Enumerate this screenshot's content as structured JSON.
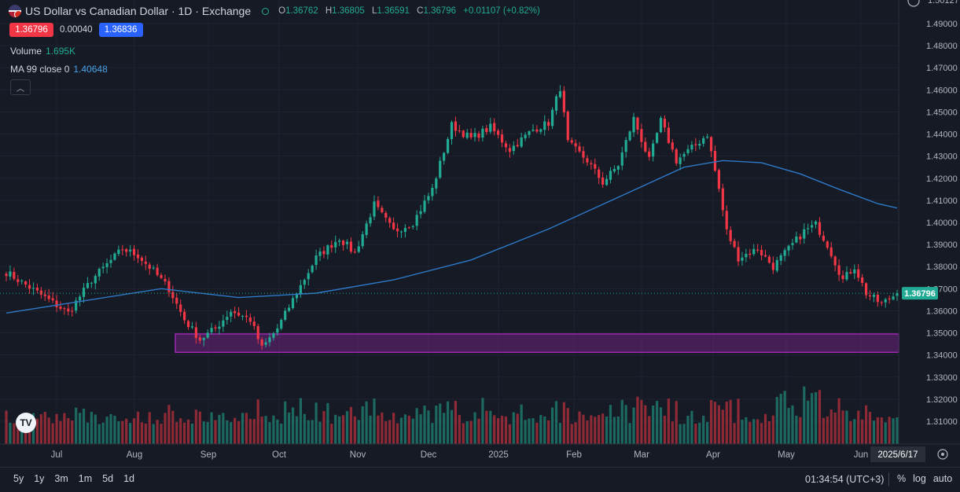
{
  "header": {
    "symbol_title": "US Dollar vs Canadian Dollar · 1D · Exchange",
    "ohlc": {
      "o_label": "O",
      "o": "1.36762",
      "h_label": "H",
      "h": "1.36805",
      "l_label": "L",
      "l": "1.36591",
      "c_label": "C",
      "c": "1.36796",
      "change": "+0.01107 (+0.82%)"
    },
    "sell_price": "1.36796",
    "spread": "0.00040",
    "buy_price": "1.36836"
  },
  "indicators": {
    "volume_label": "Volume",
    "volume_value": "1.695K",
    "ma_label": "MA 99 close 0",
    "ma_value": "1.40648"
  },
  "price_scale": {
    "ticks": [
      "1.49000",
      "1.48000",
      "1.47000",
      "1.46000",
      "1.45000",
      "1.44000",
      "1.43000",
      "1.42000",
      "1.41000",
      "1.40000",
      "1.39000",
      "1.38000",
      "1.37000",
      "1.36000",
      "1.35000",
      "1.34000",
      "1.33000",
      "1.32000",
      "1.31000"
    ],
    "last_price_label": "1.36796",
    "top_partial_label": "1.50127"
  },
  "time_scale": {
    "labels": [
      "Jul",
      "Aug",
      "Sep",
      "Oct",
      "Nov",
      "Dec",
      "2025",
      "Feb",
      "Mar",
      "Apr",
      "May",
      "Jun"
    ],
    "cursor_date": "2025/6/17"
  },
  "bottom_bar": {
    "ranges": [
      "5y",
      "1y",
      "3m",
      "1m",
      "5d",
      "1d"
    ],
    "clock": "01:34:54 (UTC+3)",
    "percent": "%",
    "log": "log",
    "auto": "auto"
  },
  "colors": {
    "up": "#22ab94",
    "down": "#f23645",
    "ma": "#2e79c7",
    "zone": "#9c27b0",
    "bg": "#161a25"
  },
  "chart_data": {
    "type": "candlestick",
    "title": "US Dollar vs Canadian Dollar · 1D · Exchange",
    "ylim": [
      1.3035,
      1.5013
    ],
    "months": [
      "Jul",
      "Aug",
      "Sep",
      "Oct",
      "Nov",
      "Dec",
      "2025",
      "Feb",
      "Mar",
      "Apr",
      "May",
      "Jun"
    ],
    "close_path": [
      [
        0,
        1.3775
      ],
      [
        10,
        1.366
      ],
      [
        16,
        1.359
      ],
      [
        22,
        1.374
      ],
      [
        30,
        1.388
      ],
      [
        34,
        1.385
      ],
      [
        38,
        1.378
      ],
      [
        42,
        1.37
      ],
      [
        46,
        1.356
      ],
      [
        50,
        1.347
      ],
      [
        54,
        1.352
      ],
      [
        58,
        1.36
      ],
      [
        63,
        1.356
      ],
      [
        66,
        1.343
      ],
      [
        70,
        1.352
      ],
      [
        74,
        1.365
      ],
      [
        80,
        1.384
      ],
      [
        86,
        1.393
      ],
      [
        90,
        1.386
      ],
      [
        95,
        1.408
      ],
      [
        100,
        1.396
      ],
      [
        105,
        1.4
      ],
      [
        110,
        1.415
      ],
      [
        115,
        1.444
      ],
      [
        120,
        1.438
      ],
      [
        125,
        1.443
      ],
      [
        130,
        1.433
      ],
      [
        136,
        1.442
      ],
      [
        140,
        1.445
      ],
      [
        143,
        1.461
      ],
      [
        145,
        1.436
      ],
      [
        150,
        1.428
      ],
      [
        154,
        1.418
      ],
      [
        158,
        1.426
      ],
      [
        162,
        1.447
      ],
      [
        166,
        1.428
      ],
      [
        169,
        1.446
      ],
      [
        173,
        1.428
      ],
      [
        178,
        1.435
      ],
      [
        181,
        1.44
      ],
      [
        184,
        1.415
      ],
      [
        186,
        1.396
      ],
      [
        189,
        1.384
      ],
      [
        194,
        1.388
      ],
      [
        198,
        1.38
      ],
      [
        202,
        1.388
      ],
      [
        206,
        1.396
      ],
      [
        209,
        1.399
      ],
      [
        212,
        1.39
      ],
      [
        216,
        1.374
      ],
      [
        219,
        1.38
      ],
      [
        222,
        1.368
      ],
      [
        226,
        1.363
      ],
      [
        230,
        1.368
      ]
    ],
    "volume_scale_max": 1.9,
    "ma99": {
      "name": "MA 99 close 0",
      "points": [
        [
          0,
          1.359
        ],
        [
          40,
          1.37
        ],
        [
          60,
          1.366
        ],
        [
          80,
          1.368
        ],
        [
          100,
          1.374
        ],
        [
          120,
          1.383
        ],
        [
          140,
          1.397
        ],
        [
          160,
          1.413
        ],
        [
          175,
          1.425
        ],
        [
          185,
          1.428
        ],
        [
          195,
          1.427
        ],
        [
          205,
          1.422
        ],
        [
          215,
          1.415
        ],
        [
          225,
          1.4085
        ],
        [
          230,
          1.4065
        ]
      ],
      "last_value": 1.40648
    },
    "support_zone": {
      "y_low": 1.3412,
      "y_high": 1.3495,
      "x_start_month": "Aug"
    },
    "last_price": 1.36796
  }
}
